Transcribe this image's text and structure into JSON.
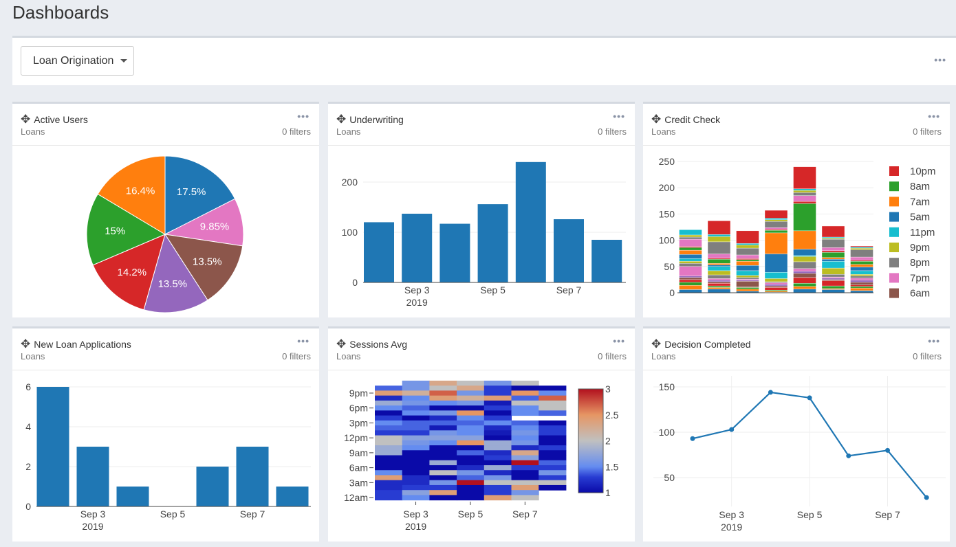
{
  "page": {
    "title": "Dashboards"
  },
  "toolbar": {
    "dashboard_select": "Loan Origination",
    "more": "•••"
  },
  "cards": [
    {
      "title": "Active Users",
      "subtitle": "Loans",
      "filters": "0 filters",
      "more": "•••"
    },
    {
      "title": "Underwriting",
      "subtitle": "Loans",
      "filters": "0 filters",
      "more": "•••"
    },
    {
      "title": "Credit Check",
      "subtitle": "Loans",
      "filters": "0 filters",
      "more": "•••"
    },
    {
      "title": "New Loan Applications",
      "subtitle": "Loans",
      "filters": "0 filters",
      "more": "•••"
    },
    {
      "title": "Sessions Avg",
      "subtitle": "Loans",
      "filters": "0 filters",
      "more": "•••"
    },
    {
      "title": "Decision Completed",
      "subtitle": "Loans",
      "filters": "0 filters",
      "more": "•••"
    }
  ],
  "chart_data": [
    {
      "type": "pie",
      "labels": [
        "17.5%",
        "9.85%",
        "13.5%",
        "13.5%",
        "14.2%",
        "15%",
        "16.4%"
      ],
      "values": [
        17.5,
        9.85,
        13.5,
        13.5,
        14.2,
        15,
        16.4
      ],
      "colors": [
        "#1f77b4",
        "#e377c2",
        "#8c564b",
        "#9467bd",
        "#d62728",
        "#2ca02c",
        "#ff7f0e"
      ]
    },
    {
      "type": "bar",
      "x": [
        "2019-09-02",
        "2019-09-03",
        "2019-09-04",
        "2019-09-05",
        "2019-09-06",
        "2019-09-07",
        "2019-09-08"
      ],
      "values": [
        120,
        137,
        117,
        156,
        240,
        126,
        85
      ],
      "ylim": [
        0,
        250
      ],
      "yticks": [
        "0",
        "100",
        "200"
      ],
      "xticks": [
        "Sep 3",
        "Sep 5",
        "Sep 7"
      ],
      "xtick_year": "2019",
      "color": "#1f77b4"
    },
    {
      "type": "bar",
      "stacked": true,
      "x": [
        "2019-09-02",
        "2019-09-03",
        "2019-09-04",
        "2019-09-05",
        "2019-09-06",
        "2019-09-07",
        "2019-09-08"
      ],
      "ylim": [
        0,
        250
      ],
      "yticks": [
        "0",
        "50",
        "100",
        "150",
        "200",
        "250"
      ],
      "series": [
        {
          "values": [
            6,
            7,
            3,
            1,
            7,
            6,
            4
          ],
          "color": "#1f77b4"
        },
        {
          "values": [
            8,
            3,
            4,
            2,
            5,
            2,
            5
          ],
          "color": "#ff7f0e"
        },
        {
          "values": [
            6,
            3,
            3,
            2,
            6,
            5,
            3
          ],
          "color": "#2ca02c"
        },
        {
          "values": [
            5,
            5,
            1,
            5,
            11,
            10,
            3
          ],
          "color": "#d62728"
        },
        {
          "values": [
            4,
            3,
            11,
            3,
            8,
            2,
            5
          ],
          "color": "#8c564b"
        },
        {
          "values": [
            3,
            3,
            2,
            3,
            4,
            3,
            4
          ],
          "color": "#9467bd"
        },
        {
          "values": [
            18,
            3,
            2,
            3,
            5,
            2,
            4
          ],
          "color": "#e377c2"
        },
        {
          "values": [
            6,
            7,
            3,
            2,
            13,
            5,
            4
          ],
          "color": "#7f7f7f"
        },
        {
          "values": [
            4,
            8,
            4,
            6,
            10,
            12,
            3
          ],
          "color": "#bcbd22"
        },
        {
          "values": [
            5,
            8,
            9,
            12,
            2,
            13,
            7
          ],
          "color": "#17becf"
        },
        {
          "values": [
            8,
            3,
            10,
            35,
            12,
            4,
            7
          ],
          "color": "#1f77b4"
        },
        {
          "values": [
            8,
            3,
            8,
            40,
            35,
            3,
            5
          ],
          "color": "#ff7f0e"
        },
        {
          "values": [
            5,
            8,
            3,
            5,
            52,
            10,
            6
          ],
          "color": "#2ca02c"
        },
        {
          "values": [
            2,
            2,
            2,
            2,
            4,
            3,
            2
          ],
          "color": "#d62728"
        },
        {
          "values": [
            14,
            8,
            7,
            3,
            11,
            6,
            6
          ],
          "color": "#e377c2"
        },
        {
          "values": [
            4,
            23,
            13,
            12,
            6,
            16,
            14
          ],
          "color": "#7f7f7f"
        },
        {
          "values": [
            4,
            10,
            6,
            3,
            4,
            2,
            3
          ],
          "color": "#bcbd22"
        },
        {
          "values": [
            10,
            4,
            3,
            3,
            3,
            2,
            2
          ],
          "color": "#17becf"
        },
        {
          "values": [
            0,
            26,
            24,
            15,
            42,
            21,
            2
          ],
          "color": "#d62728"
        }
      ],
      "legend": [
        {
          "name": "10pm",
          "color": "#d62728"
        },
        {
          "name": "8am",
          "color": "#2ca02c"
        },
        {
          "name": "7am",
          "color": "#ff7f0e"
        },
        {
          "name": "5am",
          "color": "#1f77b4"
        },
        {
          "name": "11pm",
          "color": "#17becf"
        },
        {
          "name": "9pm",
          "color": "#bcbd22"
        },
        {
          "name": "8pm",
          "color": "#7f7f7f"
        },
        {
          "name": "7pm",
          "color": "#e377c2"
        },
        {
          "name": "6am",
          "color": "#8c564b"
        }
      ],
      "legend_position": "right"
    },
    {
      "type": "bar",
      "x": [
        "2019-09-02",
        "2019-09-03",
        "2019-09-04",
        "2019-09-05",
        "2019-09-06",
        "2019-09-07",
        "2019-09-08"
      ],
      "values": [
        6,
        3,
        1,
        0,
        2,
        3,
        1
      ],
      "ylim": [
        0,
        6
      ],
      "yticks": [
        "0",
        "2",
        "4",
        "6"
      ],
      "xticks": [
        "Sep 3",
        "Sep 5",
        "Sep 7"
      ],
      "xtick_year": "2019",
      "color": "#1f77b4"
    },
    {
      "type": "heatmap",
      "x": [
        "2019-09-02",
        "2019-09-03",
        "2019-09-04",
        "2019-09-05",
        "2019-09-06",
        "2019-09-07",
        "2019-09-08"
      ],
      "y": [
        "11pm",
        "10pm",
        "9pm",
        "8pm",
        "7pm",
        "6pm",
        "5pm",
        "4pm",
        "3pm",
        "2pm",
        "1pm",
        "12pm",
        "11am",
        "10am",
        "9am",
        "8am",
        "7am",
        "6am",
        "5am",
        "4am",
        "3am",
        "2am",
        "1am",
        "12am"
      ],
      "yticks": [
        "9pm",
        "6pm",
        "3pm",
        "12pm",
        "9am",
        "6am",
        "3am",
        "12am"
      ],
      "xticks": [
        "Sep 3",
        "Sep 5",
        "Sep 7"
      ],
      "xtick_year": "2019",
      "z": [
        [
          null,
          1.6,
          2.3,
          2.0,
          1.6,
          2.0,
          null
        ],
        [
          1.4,
          1.6,
          2.0,
          2.3,
          1.3,
          1.0,
          1.0
        ],
        [
          2.4,
          2.2,
          2.7,
          1.6,
          1.3,
          2.5,
          1.5
        ],
        [
          1.2,
          1.5,
          2.4,
          2.2,
          2.4,
          1.4,
          2.7
        ],
        [
          1.8,
          1.6,
          1.5,
          1.6,
          1.1,
          2.0,
          2.0
        ],
        [
          1.5,
          1.4,
          1.0,
          1.0,
          1.3,
          1.5,
          2.0
        ],
        [
          1.0,
          1.5,
          1.6,
          2.5,
          1.0,
          1.5,
          1.4
        ],
        [
          1.3,
          1.0,
          1.2,
          1.5,
          1.3,
          null,
          null
        ],
        [
          1.5,
          1.4,
          1.4,
          1.4,
          1.5,
          1.4,
          1.0
        ],
        [
          1.4,
          1.4,
          1.1,
          1.5,
          1.2,
          1.5,
          1.3
        ],
        [
          1.3,
          1.3,
          1.6,
          1.5,
          1.1,
          1.6,
          1.3
        ],
        [
          2.0,
          1.7,
          1.7,
          1.7,
          1.0,
          1.5,
          1.0
        ],
        [
          2.0,
          1.6,
          1.5,
          2.5,
          1.8,
          1.6,
          1.0
        ],
        [
          1.8,
          1.5,
          1.0,
          1.0,
          1.8,
          1.2,
          1.3
        ],
        [
          1.8,
          1.0,
          1.0,
          1.4,
          1.2,
          2.3,
          1.0
        ],
        [
          1.0,
          1.0,
          1.0,
          1.0,
          1.3,
          1.7,
          1.0
        ],
        [
          1.0,
          1.0,
          1.8,
          1.0,
          1.0,
          3.0,
          1.4
        ],
        [
          1.0,
          1.0,
          1.0,
          1.2,
          1.8,
          1.3,
          1.3
        ],
        [
          1.5,
          1.0,
          2.0,
          1.6,
          1.2,
          1.0,
          1.6
        ],
        [
          2.4,
          1.2,
          1.0,
          1.4,
          1.6,
          1.0,
          1.3
        ],
        [
          1.2,
          1.2,
          1.6,
          3.0,
          2.0,
          2.0,
          2.0
        ],
        [
          1.2,
          1.3,
          1.3,
          1.0,
          1.3,
          2.4,
          1.0
        ],
        [
          1.3,
          1.7,
          2.4,
          1.0,
          1.3,
          1.6,
          null
        ],
        [
          1.3,
          1.5,
          1.0,
          1.0,
          2.4,
          2.0,
          null
        ]
      ],
      "zlim": [
        1,
        3
      ],
      "colorbar_ticks": [
        "3",
        "2.5",
        "2",
        "1.5",
        "1"
      ]
    },
    {
      "type": "line",
      "x": [
        "2019-09-02",
        "2019-09-03",
        "2019-09-04",
        "2019-09-05",
        "2019-09-06",
        "2019-09-07",
        "2019-09-08"
      ],
      "values": [
        93,
        103,
        144,
        138,
        74,
        80,
        28
      ],
      "ylim": [
        0,
        160
      ],
      "yticks": [
        "50",
        "100",
        "150"
      ],
      "xticks": [
        "Sep 3",
        "Sep 5",
        "Sep 7"
      ],
      "xtick_year": "2019",
      "color": "#1f77b4"
    }
  ]
}
